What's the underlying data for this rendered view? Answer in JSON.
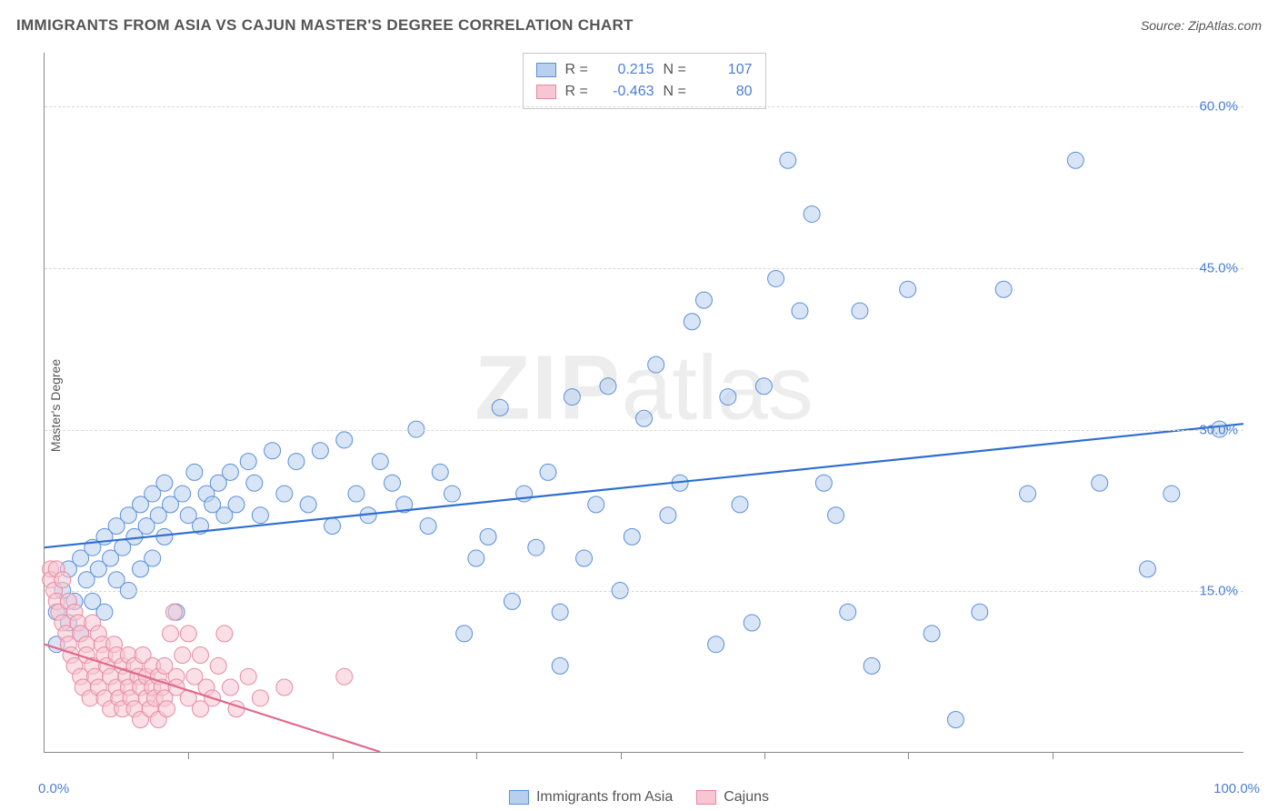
{
  "title": "IMMIGRANTS FROM ASIA VS CAJUN MASTER'S DEGREE CORRELATION CHART",
  "source": "Source: ZipAtlas.com",
  "ylabel": "Master's Degree",
  "watermark_zip": "ZIP",
  "watermark_atlas": "atlas",
  "chart": {
    "type": "scatter",
    "background": "#ffffff",
    "grid_color": "#d8d8d8",
    "axis_color": "#888888",
    "font_color": "#555555",
    "tick_color": "#4a7ed6",
    "xlim": [
      0,
      100
    ],
    "ylim": [
      0,
      65
    ],
    "y_ticks": [
      15,
      30,
      45,
      60
    ],
    "y_tick_labels": [
      "15.0%",
      "30.0%",
      "45.0%",
      "60.0%"
    ],
    "x_ticks": [
      12,
      24,
      36,
      48,
      60,
      72,
      84
    ],
    "x_min_label": "0.0%",
    "x_max_label": "100.0%",
    "point_radius": 9,
    "point_opacity": 0.55,
    "line_width": 2.2,
    "series": [
      {
        "name": "Immigrants from Asia",
        "fill": "#b8d0ef",
        "stroke": "#5c8fd8",
        "line_color": "#2e6fd0",
        "r_value": "0.215",
        "n_value": "107",
        "regression": {
          "x1": 0,
          "y1": 19.0,
          "x2": 100,
          "y2": 30.5
        },
        "points": [
          [
            1,
            10
          ],
          [
            1,
            13
          ],
          [
            1.5,
            15
          ],
          [
            2,
            12
          ],
          [
            2,
            17
          ],
          [
            2.5,
            14
          ],
          [
            3,
            18
          ],
          [
            3,
            11
          ],
          [
            3.5,
            16
          ],
          [
            4,
            19
          ],
          [
            4,
            14
          ],
          [
            4.5,
            17
          ],
          [
            5,
            20
          ],
          [
            5,
            13
          ],
          [
            5.5,
            18
          ],
          [
            6,
            21
          ],
          [
            6,
            16
          ],
          [
            6.5,
            19
          ],
          [
            7,
            22
          ],
          [
            7,
            15
          ],
          [
            7.5,
            20
          ],
          [
            8,
            23
          ],
          [
            8,
            17
          ],
          [
            8.5,
            21
          ],
          [
            9,
            24
          ],
          [
            9,
            18
          ],
          [
            9.5,
            22
          ],
          [
            10,
            25
          ],
          [
            10,
            20
          ],
          [
            10.5,
            23
          ],
          [
            11,
            13
          ],
          [
            11.5,
            24
          ],
          [
            12,
            22
          ],
          [
            12.5,
            26
          ],
          [
            13,
            21
          ],
          [
            13.5,
            24
          ],
          [
            14,
            23
          ],
          [
            14.5,
            25
          ],
          [
            15,
            22
          ],
          [
            15.5,
            26
          ],
          [
            16,
            23
          ],
          [
            17,
            27
          ],
          [
            17.5,
            25
          ],
          [
            18,
            22
          ],
          [
            19,
            28
          ],
          [
            20,
            24
          ],
          [
            21,
            27
          ],
          [
            22,
            23
          ],
          [
            23,
            28
          ],
          [
            24,
            21
          ],
          [
            25,
            29
          ],
          [
            26,
            24
          ],
          [
            27,
            22
          ],
          [
            28,
            27
          ],
          [
            29,
            25
          ],
          [
            30,
            23
          ],
          [
            31,
            30
          ],
          [
            32,
            21
          ],
          [
            33,
            26
          ],
          [
            34,
            24
          ],
          [
            35,
            11
          ],
          [
            36,
            18
          ],
          [
            37,
            20
          ],
          [
            38,
            32
          ],
          [
            39,
            14
          ],
          [
            40,
            24
          ],
          [
            41,
            19
          ],
          [
            42,
            26
          ],
          [
            43,
            13
          ],
          [
            44,
            33
          ],
          [
            43,
            8
          ],
          [
            45,
            18
          ],
          [
            46,
            23
          ],
          [
            47,
            34
          ],
          [
            48,
            15
          ],
          [
            49,
            20
          ],
          [
            50,
            31
          ],
          [
            51,
            36
          ],
          [
            52,
            22
          ],
          [
            53,
            25
          ],
          [
            54,
            40
          ],
          [
            55,
            42
          ],
          [
            56,
            10
          ],
          [
            57,
            33
          ],
          [
            58,
            23
          ],
          [
            59,
            12
          ],
          [
            60,
            34
          ],
          [
            61,
            44
          ],
          [
            62,
            55
          ],
          [
            63,
            41
          ],
          [
            64,
            50
          ],
          [
            65,
            25
          ],
          [
            66,
            22
          ],
          [
            67,
            13
          ],
          [
            68,
            41
          ],
          [
            69,
            8
          ],
          [
            72,
            43
          ],
          [
            74,
            11
          ],
          [
            76,
            3
          ],
          [
            78,
            13
          ],
          [
            80,
            43
          ],
          [
            82,
            24
          ],
          [
            86,
            55
          ],
          [
            88,
            25
          ],
          [
            92,
            17
          ],
          [
            94,
            24
          ],
          [
            98,
            30
          ]
        ]
      },
      {
        "name": "Cajuns",
        "fill": "#f6c6d2",
        "stroke": "#e889a2",
        "line_color": "#e06a8a",
        "r_value": "-0.463",
        "n_value": "80",
        "regression": {
          "x1": 0,
          "y1": 10.0,
          "x2": 28,
          "y2": 0
        },
        "points": [
          [
            0.5,
            17
          ],
          [
            0.5,
            16
          ],
          [
            0.8,
            15
          ],
          [
            1,
            17
          ],
          [
            1,
            14
          ],
          [
            1.2,
            13
          ],
          [
            1.5,
            16
          ],
          [
            1.5,
            12
          ],
          [
            1.8,
            11
          ],
          [
            2,
            14
          ],
          [
            2,
            10
          ],
          [
            2.2,
            9
          ],
          [
            2.5,
            13
          ],
          [
            2.5,
            8
          ],
          [
            2.8,
            12
          ],
          [
            3,
            7
          ],
          [
            3,
            11
          ],
          [
            3.2,
            6
          ],
          [
            3.5,
            10
          ],
          [
            3.5,
            9
          ],
          [
            3.8,
            5
          ],
          [
            4,
            8
          ],
          [
            4,
            12
          ],
          [
            4.2,
            7
          ],
          [
            4.5,
            11
          ],
          [
            4.5,
            6
          ],
          [
            4.8,
            10
          ],
          [
            5,
            5
          ],
          [
            5,
            9
          ],
          [
            5.2,
            8
          ],
          [
            5.5,
            4
          ],
          [
            5.5,
            7
          ],
          [
            5.8,
            10
          ],
          [
            6,
            6
          ],
          [
            6,
            9
          ],
          [
            6.2,
            5
          ],
          [
            6.5,
            8
          ],
          [
            6.5,
            4
          ],
          [
            6.8,
            7
          ],
          [
            7,
            6
          ],
          [
            7,
            9
          ],
          [
            7.2,
            5
          ],
          [
            7.5,
            8
          ],
          [
            7.5,
            4
          ],
          [
            7.8,
            7
          ],
          [
            8,
            6
          ],
          [
            8,
            3
          ],
          [
            8.2,
            9
          ],
          [
            8.5,
            5
          ],
          [
            8.5,
            7
          ],
          [
            8.8,
            4
          ],
          [
            9,
            6
          ],
          [
            9,
            8
          ],
          [
            9.2,
            5
          ],
          [
            9.5,
            7
          ],
          [
            9.5,
            3
          ],
          [
            9.8,
            6
          ],
          [
            10,
            5
          ],
          [
            10,
            8
          ],
          [
            10.2,
            4
          ],
          [
            10.5,
            11
          ],
          [
            10.8,
            13
          ],
          [
            11,
            7
          ],
          [
            11,
            6
          ],
          [
            11.5,
            9
          ],
          [
            12,
            5
          ],
          [
            12,
            11
          ],
          [
            12.5,
            7
          ],
          [
            13,
            4
          ],
          [
            13,
            9
          ],
          [
            13.5,
            6
          ],
          [
            14,
            5
          ],
          [
            14.5,
            8
          ],
          [
            15,
            11
          ],
          [
            15.5,
            6
          ],
          [
            16,
            4
          ],
          [
            17,
            7
          ],
          [
            18,
            5
          ],
          [
            20,
            6
          ],
          [
            25,
            7
          ]
        ]
      }
    ]
  },
  "bottom_legend": {
    "a": "Immigrants from Asia",
    "b": "Cajuns"
  },
  "stats_legend": {
    "r_label": "R =",
    "n_label": "N ="
  }
}
